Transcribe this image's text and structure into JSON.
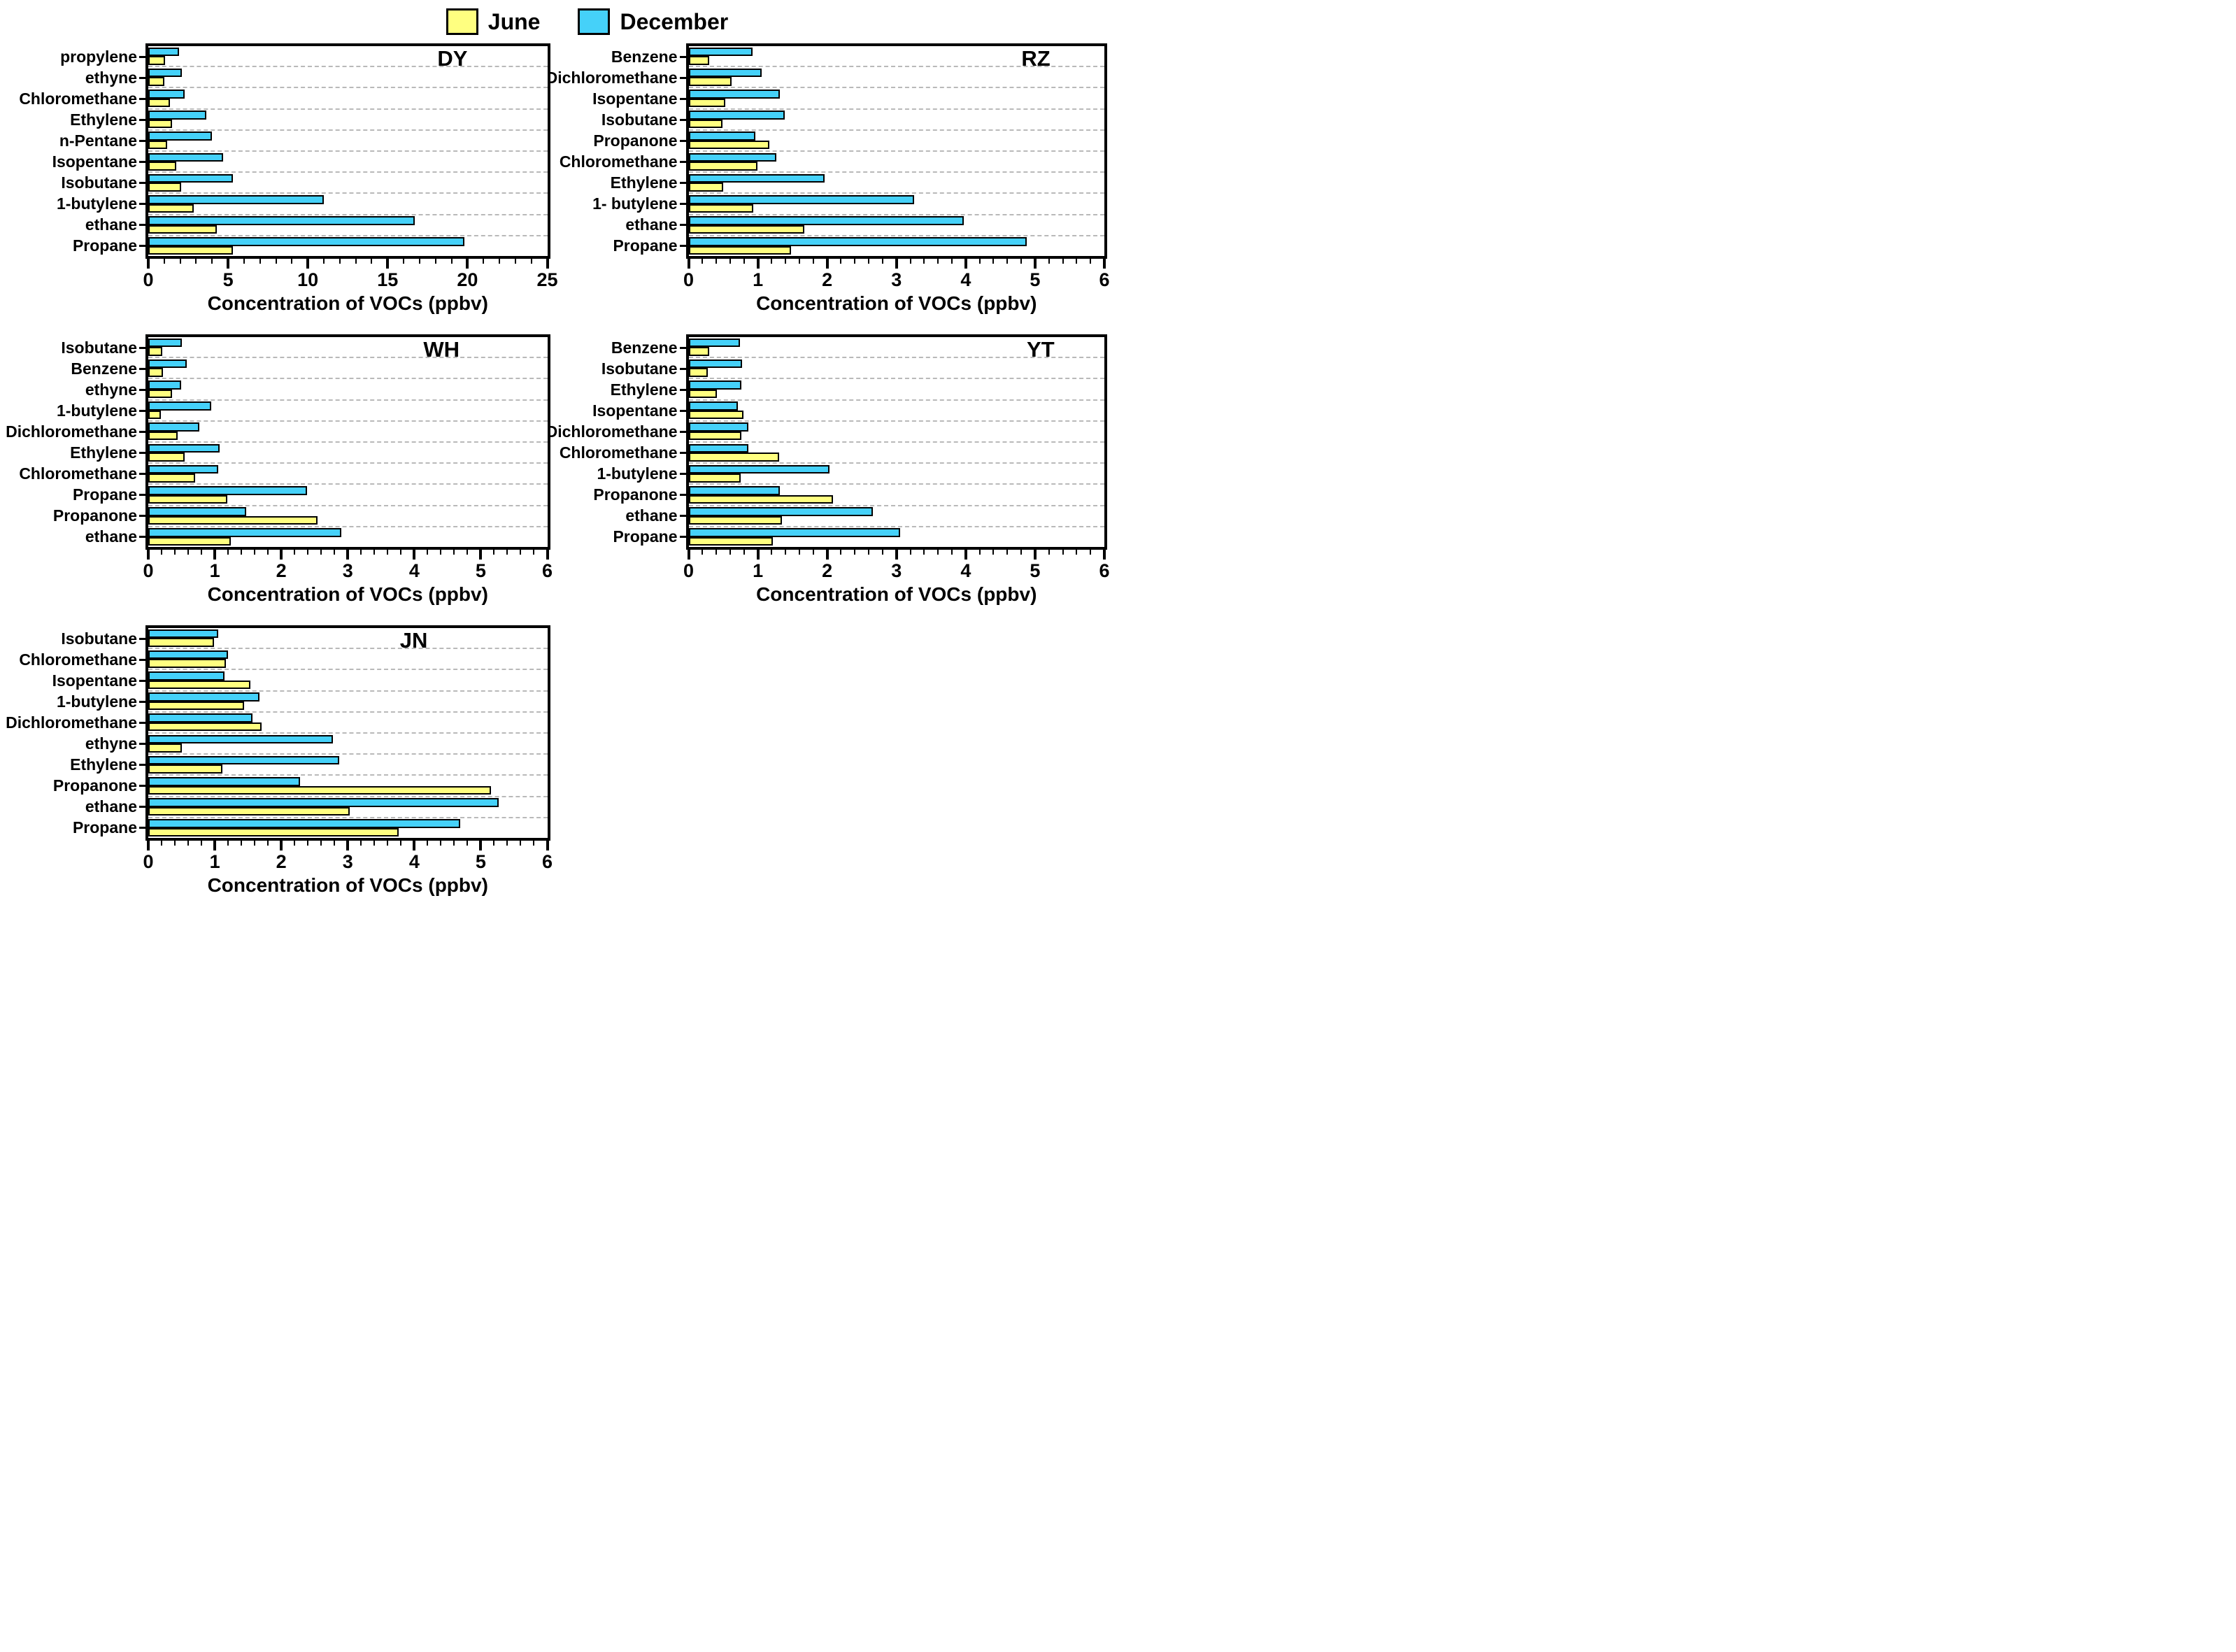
{
  "legend": {
    "june_label": "June",
    "december_label": "December"
  },
  "colors": {
    "june": "#FFFF80",
    "december": "#45D1F9",
    "bar_border": "#000000",
    "gridline": "#b9b9b9"
  },
  "xlabel": "Concentration of VOCs (ppbv)",
  "chart_data": [
    {
      "type": "bar",
      "orientation": "horizontal",
      "title": "DY",
      "xlabel": "Concentration of VOCs (ppbv)",
      "xlim": [
        0,
        25
      ],
      "xticks": [
        0,
        5,
        10,
        15,
        20,
        25
      ],
      "minor_tick_step": 1,
      "grid": "dashed-horizontal-between-groups",
      "legend_position": "top-center-of-figure",
      "categories": [
        "propylene",
        "ethyne",
        "Chloromethane",
        "Ethylene",
        "n-Pentane",
        "Isopentane",
        "Isobutane",
        "1-butylene",
        "ethane",
        "Propane"
      ],
      "series": [
        {
          "name": "June",
          "values": [
            1.05,
            1.0,
            1.35,
            1.5,
            1.2,
            1.75,
            2.05,
            2.85,
            4.3,
            5.3
          ]
        },
        {
          "name": "December",
          "values": [
            1.95,
            2.1,
            2.3,
            3.65,
            4.0,
            4.7,
            5.3,
            11.0,
            16.7,
            19.8
          ]
        }
      ]
    },
    {
      "type": "bar",
      "orientation": "horizontal",
      "title": "RZ",
      "xlabel": "Concentration of VOCs (ppbv)",
      "xlim": [
        0,
        6
      ],
      "xticks": [
        0,
        1,
        2,
        3,
        4,
        5,
        6
      ],
      "minor_tick_step": 0.2,
      "grid": "dashed-horizontal-between-groups",
      "categories": [
        "Benzene",
        "Dichloromethane",
        "Isopentane",
        "Isobutane",
        "Propanone",
        "Chloromethane",
        "Ethylene",
        "1- butylene",
        "ethane",
        "Propane"
      ],
      "series": [
        {
          "name": "June",
          "values": [
            0.3,
            0.62,
            0.53,
            0.49,
            1.17,
            0.99,
            0.5,
            0.93,
            1.67,
            1.48
          ]
        },
        {
          "name": "December",
          "values": [
            0.92,
            1.05,
            1.32,
            1.39,
            0.96,
            1.27,
            1.96,
            3.25,
            3.97,
            4.88
          ]
        }
      ]
    },
    {
      "type": "bar",
      "orientation": "horizontal",
      "title": "WH",
      "xlabel": "Concentration of VOCs (ppbv)",
      "xlim": [
        0,
        6
      ],
      "xticks": [
        0,
        1,
        2,
        3,
        4,
        5,
        6
      ],
      "minor_tick_step": 0.2,
      "grid": "dashed-horizontal-between-groups",
      "categories": [
        "Isobutane",
        "Benzene",
        "ethyne",
        "1-butylene",
        "Dichloromethane",
        "Ethylene",
        "Chloromethane",
        "Propane",
        "Propanone",
        "ethane"
      ],
      "series": [
        {
          "name": "June",
          "values": [
            0.21,
            0.22,
            0.36,
            0.19,
            0.44,
            0.55,
            0.7,
            1.19,
            2.55,
            1.24
          ]
        },
        {
          "name": "December",
          "values": [
            0.51,
            0.58,
            0.49,
            0.95,
            0.77,
            1.07,
            1.05,
            2.39,
            1.47,
            2.9
          ]
        }
      ]
    },
    {
      "type": "bar",
      "orientation": "horizontal",
      "title": "YT",
      "xlabel": "Concentration of VOCs (ppbv)",
      "xlim": [
        0,
        6
      ],
      "xticks": [
        0,
        1,
        2,
        3,
        4,
        5,
        6
      ],
      "minor_tick_step": 0.2,
      "grid": "dashed-horizontal-between-groups",
      "categories": [
        "Benzene",
        "Isobutane",
        "Ethylene",
        "Isopentane",
        "Dichloromethane",
        "Chloromethane",
        "1-butylene",
        "Propanone",
        "ethane",
        "Propane"
      ],
      "series": [
        {
          "name": "June",
          "values": [
            0.3,
            0.28,
            0.41,
            0.79,
            0.76,
            1.31,
            0.75,
            2.08,
            1.35,
            1.22
          ]
        },
        {
          "name": "December",
          "values": [
            0.74,
            0.77,
            0.76,
            0.71,
            0.86,
            0.86,
            2.03,
            1.32,
            2.66,
            3.05
          ]
        }
      ]
    },
    {
      "type": "bar",
      "orientation": "horizontal",
      "title": "JN",
      "xlabel": "Concentration of VOCs (ppbv)",
      "xlim": [
        0,
        6
      ],
      "xticks": [
        0,
        1,
        2,
        3,
        4,
        5,
        6
      ],
      "minor_tick_step": 0.2,
      "grid": "dashed-horizontal-between-groups",
      "categories": [
        "Isobutane",
        "Chloromethane",
        "Isopentane",
        "1-butylene",
        "Dichloromethane",
        "ethyne",
        "Ethylene",
        "Propanone",
        "ethane",
        "Propane"
      ],
      "series": [
        {
          "name": "June",
          "values": [
            0.99,
            1.17,
            1.54,
            1.44,
            1.7,
            0.51,
            1.11,
            5.15,
            3.03,
            3.77
          ]
        },
        {
          "name": "December",
          "values": [
            1.05,
            1.2,
            1.15,
            1.67,
            1.57,
            2.78,
            2.87,
            2.28,
            5.27,
            4.69
          ]
        }
      ]
    }
  ]
}
